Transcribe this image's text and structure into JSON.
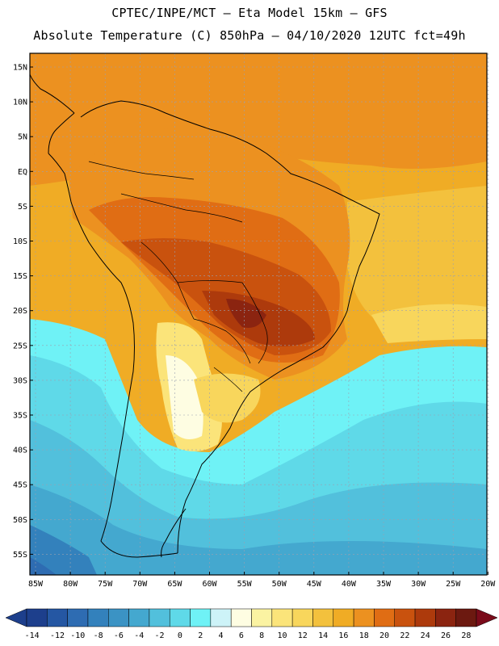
{
  "header": {
    "title_line1": "CPTEC/INPE/MCT –  Eta Model 15km – GFS",
    "title_line2": "Absolute Temperature (C) 850hPa – 04/10/2020 12UTC fct=49h"
  },
  "map": {
    "lat_labels": [
      "15N",
      "10N",
      "5N",
      "EQ",
      "5S",
      "10S",
      "15S",
      "20S",
      "25S",
      "30S",
      "35S",
      "40S",
      "45S",
      "50S",
      "55S"
    ],
    "lon_labels": [
      "85W",
      "80W",
      "75W",
      "70W",
      "65W",
      "60W",
      "55W",
      "50W",
      "45W",
      "40W",
      "35W",
      "30W",
      "25W",
      "20W"
    ],
    "field": "Absolute Temperature (C) 850hPa",
    "gridlines": "dotted"
  },
  "colorbar": {
    "tick_labels": [
      "-14",
      "-12",
      "-10",
      "-8",
      "-6",
      "-4",
      "-2",
      "0",
      "2",
      "4",
      "6",
      "8",
      "10",
      "12",
      "14",
      "16",
      "18",
      "20",
      "22",
      "24",
      "26",
      "28"
    ],
    "colors": [
      "#1d3f8c",
      "#2557a3",
      "#2e6cb2",
      "#3381bc",
      "#3b93c4",
      "#44a8cf",
      "#52c0dc",
      "#5fd9e8",
      "#6ff2f6",
      "#cdf3f8",
      "#fefde2",
      "#fbf3a2",
      "#fbe47a",
      "#f8d65c",
      "#f3c13d",
      "#f0ac25",
      "#ec9120",
      "#e06d14",
      "#c9520e",
      "#ad3a0c",
      "#8b2410",
      "#6c1910"
    ],
    "unit": "C"
  }
}
